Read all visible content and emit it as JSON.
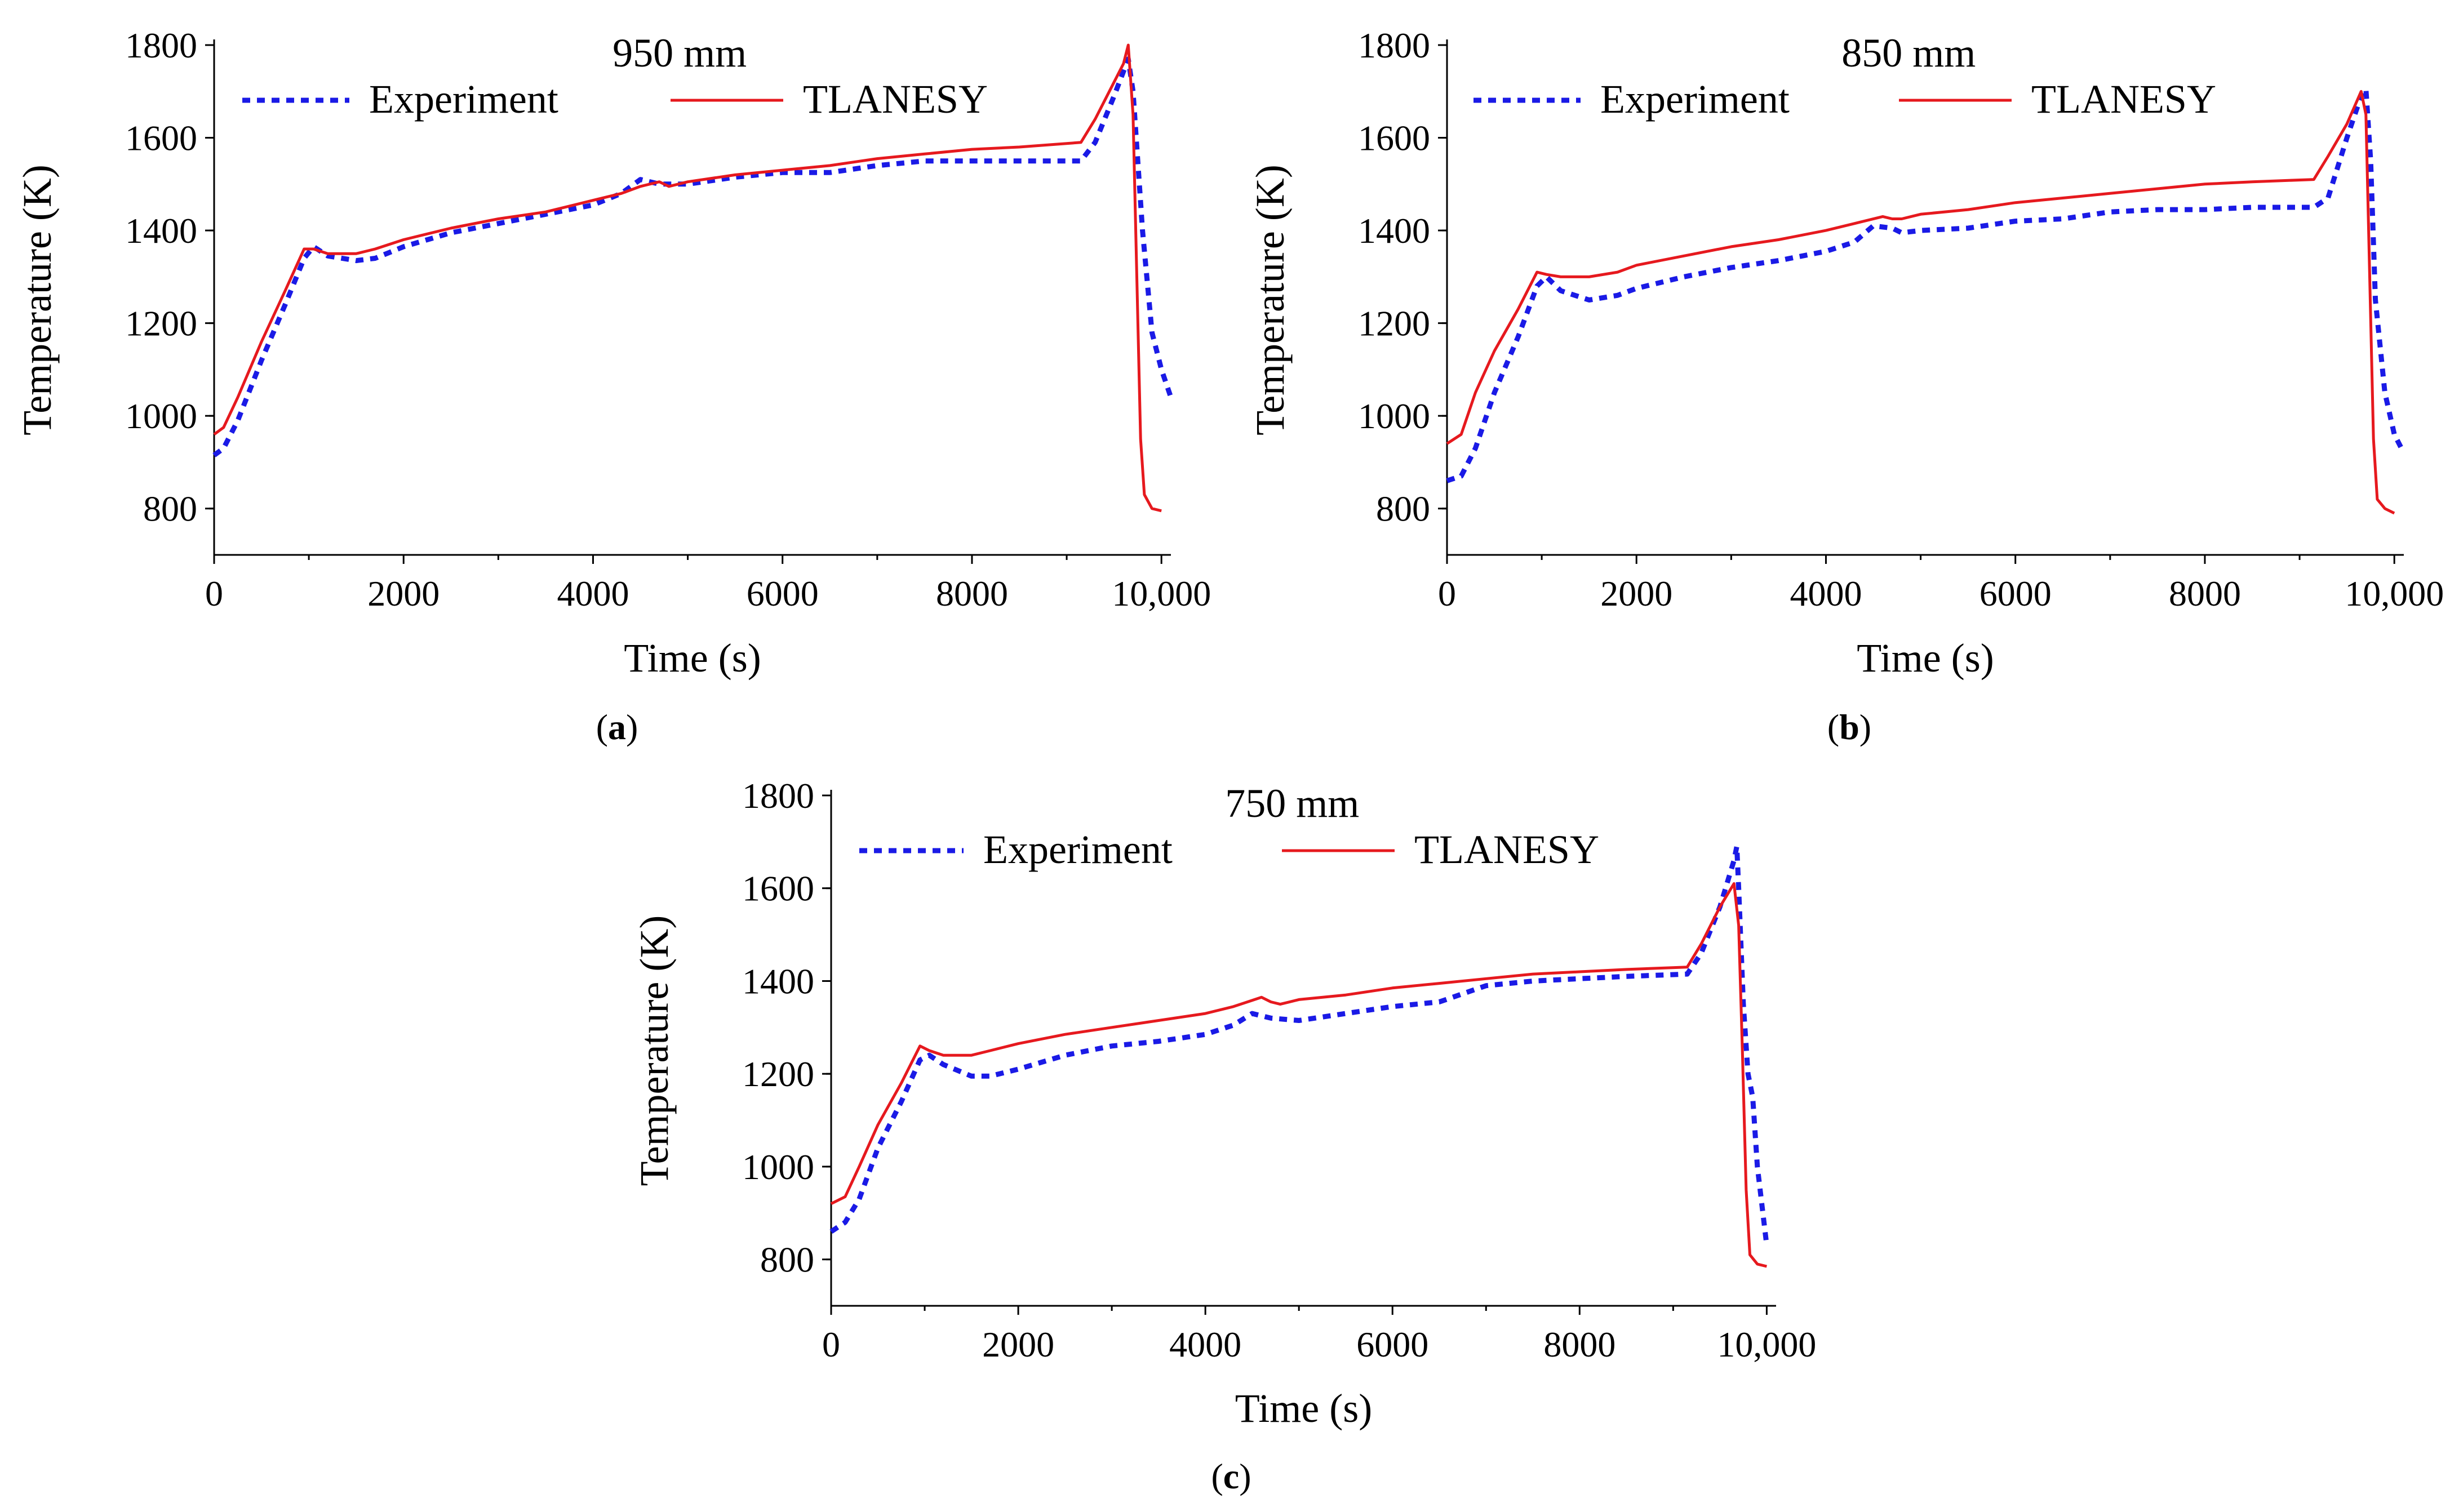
{
  "chart_data": [
    {
      "type": "line",
      "caption_letter": "a",
      "caption": "(a)",
      "title": "950 mm",
      "xlabel": "Time (s)",
      "ylabel": "Temperature (K)",
      "xlim": [
        0,
        10100
      ],
      "ylim": [
        700,
        1800
      ],
      "xticks": [
        0,
        2000,
        4000,
        6000,
        8000,
        10000
      ],
      "xtick_labels": [
        "0",
        "2000",
        "4000",
        "6000",
        "8000",
        "10,000"
      ],
      "yticks": [
        800,
        1000,
        1200,
        1400,
        1600,
        1800
      ],
      "ytick_labels": [
        "800",
        "1000",
        "1200",
        "1400",
        "1600",
        "1800"
      ],
      "legend_position": "top",
      "series": [
        {
          "name": "Experiment",
          "style": "dotted",
          "color": "#1a1ae6",
          "points": [
            [
              0,
              915
            ],
            [
              100,
              930
            ],
            [
              250,
              990
            ],
            [
              500,
              1120
            ],
            [
              750,
              1240
            ],
            [
              950,
              1340
            ],
            [
              1050,
              1365
            ],
            [
              1200,
              1345
            ],
            [
              1500,
              1335
            ],
            [
              1700,
              1340
            ],
            [
              2000,
              1365
            ],
            [
              2500,
              1395
            ],
            [
              3000,
              1415
            ],
            [
              3500,
              1435
            ],
            [
              4000,
              1455
            ],
            [
              4300,
              1480
            ],
            [
              4500,
              1510
            ],
            [
              4700,
              1500
            ],
            [
              5000,
              1500
            ],
            [
              5500,
              1515
            ],
            [
              6000,
              1525
            ],
            [
              6500,
              1525
            ],
            [
              7000,
              1540
            ],
            [
              7500,
              1550
            ],
            [
              8000,
              1550
            ],
            [
              8500,
              1550
            ],
            [
              9150,
              1550
            ],
            [
              9300,
              1590
            ],
            [
              9500,
              1690
            ],
            [
              9650,
              1770
            ],
            [
              9700,
              1700
            ],
            [
              9800,
              1400
            ],
            [
              9900,
              1180
            ],
            [
              10000,
              1100
            ],
            [
              10100,
              1040
            ]
          ]
        },
        {
          "name": "TLANESY",
          "style": "solid",
          "color": "#e6191e",
          "points": [
            [
              0,
              960
            ],
            [
              100,
              975
            ],
            [
              250,
              1040
            ],
            [
              500,
              1160
            ],
            [
              750,
              1270
            ],
            [
              950,
              1360
            ],
            [
              1050,
              1360
            ],
            [
              1200,
              1350
            ],
            [
              1500,
              1350
            ],
            [
              1700,
              1360
            ],
            [
              2000,
              1380
            ],
            [
              2500,
              1405
            ],
            [
              3000,
              1425
            ],
            [
              3500,
              1440
            ],
            [
              4000,
              1465
            ],
            [
              4300,
              1480
            ],
            [
              4500,
              1495
            ],
            [
              4700,
              1505
            ],
            [
              4800,
              1495
            ],
            [
              5000,
              1505
            ],
            [
              5500,
              1520
            ],
            [
              6000,
              1530
            ],
            [
              6500,
              1540
            ],
            [
              7000,
              1555
            ],
            [
              7500,
              1565
            ],
            [
              8000,
              1575
            ],
            [
              8500,
              1580
            ],
            [
              9150,
              1590
            ],
            [
              9300,
              1640
            ],
            [
              9450,
              1700
            ],
            [
              9600,
              1760
            ],
            [
              9650,
              1800
            ],
            [
              9700,
              1650
            ],
            [
              9740,
              1300
            ],
            [
              9780,
              950
            ],
            [
              9820,
              830
            ],
            [
              9900,
              800
            ],
            [
              10000,
              795
            ]
          ]
        }
      ]
    },
    {
      "type": "line",
      "caption_letter": "b",
      "caption": "(b)",
      "title": "850 mm",
      "xlabel": "Time (s)",
      "ylabel": "Temperature (K)",
      "xlim": [
        0,
        10100
      ],
      "ylim": [
        700,
        1800
      ],
      "xticks": [
        0,
        2000,
        4000,
        6000,
        8000,
        10000
      ],
      "xtick_labels": [
        "0",
        "2000",
        "4000",
        "6000",
        "8000",
        "10,000"
      ],
      "yticks": [
        800,
        1000,
        1200,
        1400,
        1600,
        1800
      ],
      "ytick_labels": [
        "800",
        "1000",
        "1200",
        "1400",
        "1600",
        "1800"
      ],
      "legend_position": "top",
      "series": [
        {
          "name": "Experiment",
          "style": "dotted",
          "color": "#1a1ae6",
          "points": [
            [
              0,
              860
            ],
            [
              150,
              870
            ],
            [
              300,
              930
            ],
            [
              500,
              1050
            ],
            [
              750,
              1170
            ],
            [
              950,
              1280
            ],
            [
              1050,
              1300
            ],
            [
              1200,
              1270
            ],
            [
              1500,
              1250
            ],
            [
              1800,
              1260
            ],
            [
              2000,
              1275
            ],
            [
              2500,
              1300
            ],
            [
              3000,
              1320
            ],
            [
              3500,
              1335
            ],
            [
              4000,
              1355
            ],
            [
              4300,
              1375
            ],
            [
              4500,
              1410
            ],
            [
              4700,
              1405
            ],
            [
              4800,
              1395
            ],
            [
              5000,
              1400
            ],
            [
              5500,
              1405
            ],
            [
              6000,
              1420
            ],
            [
              6500,
              1425
            ],
            [
              7000,
              1440
            ],
            [
              7500,
              1445
            ],
            [
              8000,
              1445
            ],
            [
              8500,
              1450
            ],
            [
              9150,
              1450
            ],
            [
              9300,
              1470
            ],
            [
              9500,
              1600
            ],
            [
              9650,
              1690
            ],
            [
              9700,
              1705
            ],
            [
              9750,
              1550
            ],
            [
              9800,
              1250
            ],
            [
              9900,
              1050
            ],
            [
              10000,
              960
            ],
            [
              10100,
              920
            ]
          ]
        },
        {
          "name": "TLANESY",
          "style": "solid",
          "color": "#e6191e",
          "points": [
            [
              0,
              940
            ],
            [
              150,
              960
            ],
            [
              300,
              1050
            ],
            [
              500,
              1140
            ],
            [
              750,
              1230
            ],
            [
              950,
              1310
            ],
            [
              1050,
              1305
            ],
            [
              1200,
              1300
            ],
            [
              1500,
              1300
            ],
            [
              1800,
              1310
            ],
            [
              2000,
              1325
            ],
            [
              2500,
              1345
            ],
            [
              3000,
              1365
            ],
            [
              3500,
              1380
            ],
            [
              4000,
              1400
            ],
            [
              4300,
              1415
            ],
            [
              4600,
              1430
            ],
            [
              4700,
              1425
            ],
            [
              4800,
              1425
            ],
            [
              5000,
              1435
            ],
            [
              5500,
              1445
            ],
            [
              6000,
              1460
            ],
            [
              6500,
              1470
            ],
            [
              7000,
              1480
            ],
            [
              7500,
              1490
            ],
            [
              8000,
              1500
            ],
            [
              8500,
              1505
            ],
            [
              9150,
              1510
            ],
            [
              9300,
              1560
            ],
            [
              9500,
              1630
            ],
            [
              9650,
              1700
            ],
            [
              9700,
              1650
            ],
            [
              9740,
              1300
            ],
            [
              9780,
              950
            ],
            [
              9820,
              820
            ],
            [
              9900,
              800
            ],
            [
              10000,
              790
            ]
          ]
        }
      ]
    },
    {
      "type": "line",
      "caption_letter": "c",
      "caption": "(c)",
      "title": "750 mm",
      "xlabel": "Time (s)",
      "ylabel": "Temperature (K)",
      "xlim": [
        0,
        10100
      ],
      "ylim": [
        700,
        1800
      ],
      "xticks": [
        0,
        2000,
        4000,
        6000,
        8000,
        10000
      ],
      "xtick_labels": [
        "0",
        "2000",
        "4000",
        "6000",
        "8000",
        "10,000"
      ],
      "yticks": [
        800,
        1000,
        1200,
        1400,
        1600,
        1800
      ],
      "ytick_labels": [
        "800",
        "1000",
        "1200",
        "1400",
        "1600",
        "1800"
      ],
      "legend_position": "top",
      "series": [
        {
          "name": "Experiment",
          "style": "dotted",
          "color": "#1a1ae6",
          "points": [
            [
              0,
              860
            ],
            [
              150,
              880
            ],
            [
              300,
              930
            ],
            [
              500,
              1040
            ],
            [
              750,
              1140
            ],
            [
              950,
              1230
            ],
            [
              1050,
              1240
            ],
            [
              1200,
              1220
            ],
            [
              1500,
              1195
            ],
            [
              1700,
              1195
            ],
            [
              2000,
              1210
            ],
            [
              2500,
              1240
            ],
            [
              3000,
              1260
            ],
            [
              3500,
              1270
            ],
            [
              4000,
              1285
            ],
            [
              4300,
              1305
            ],
            [
              4500,
              1330
            ],
            [
              4700,
              1320
            ],
            [
              5000,
              1315
            ],
            [
              5500,
              1330
            ],
            [
              6000,
              1345
            ],
            [
              6500,
              1355
            ],
            [
              7000,
              1390
            ],
            [
              7500,
              1400
            ],
            [
              8000,
              1405
            ],
            [
              8500,
              1410
            ],
            [
              9150,
              1415
            ],
            [
              9300,
              1460
            ],
            [
              9500,
              1560
            ],
            [
              9650,
              1660
            ],
            [
              9680,
              1690
            ],
            [
              9700,
              1600
            ],
            [
              9750,
              1350
            ],
            [
              9800,
              1200
            ],
            [
              9850,
              1150
            ],
            [
              9900,
              1000
            ],
            [
              10000,
              830
            ]
          ]
        },
        {
          "name": "TLANESY",
          "style": "solid",
          "color": "#e6191e",
          "points": [
            [
              0,
              920
            ],
            [
              150,
              935
            ],
            [
              300,
              1000
            ],
            [
              500,
              1090
            ],
            [
              750,
              1180
            ],
            [
              950,
              1260
            ],
            [
              1050,
              1250
            ],
            [
              1200,
              1240
            ],
            [
              1500,
              1240
            ],
            [
              1700,
              1250
            ],
            [
              2000,
              1265
            ],
            [
              2500,
              1285
            ],
            [
              3000,
              1300
            ],
            [
              3500,
              1315
            ],
            [
              4000,
              1330
            ],
            [
              4300,
              1345
            ],
            [
              4600,
              1365
            ],
            [
              4700,
              1355
            ],
            [
              4800,
              1350
            ],
            [
              5000,
              1360
            ],
            [
              5500,
              1370
            ],
            [
              6000,
              1385
            ],
            [
              6500,
              1395
            ],
            [
              7000,
              1405
            ],
            [
              7500,
              1415
            ],
            [
              8000,
              1420
            ],
            [
              8500,
              1425
            ],
            [
              9150,
              1430
            ],
            [
              9300,
              1480
            ],
            [
              9500,
              1560
            ],
            [
              9650,
              1610
            ],
            [
              9700,
              1520
            ],
            [
              9740,
              1250
            ],
            [
              9780,
              950
            ],
            [
              9820,
              810
            ],
            [
              9900,
              790
            ],
            [
              10000,
              785
            ]
          ]
        }
      ]
    }
  ]
}
